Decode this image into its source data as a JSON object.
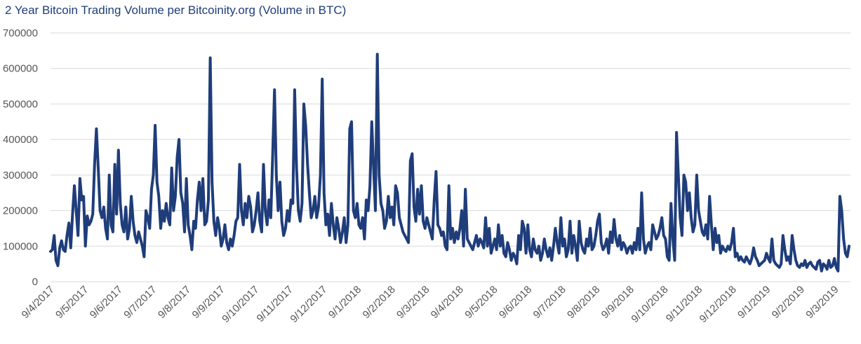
{
  "chart_data": {
    "type": "line",
    "title": "2 Year Bitcoin Trading Volume per Bitcoinity.org (Volume in BTC)",
    "xlabel": "",
    "ylabel": "",
    "ylim": [
      0,
      700000
    ],
    "yticks": [
      0,
      100000,
      200000,
      300000,
      400000,
      500000,
      600000,
      700000
    ],
    "ytick_labels": [
      "0",
      "100000",
      "200000",
      "300000",
      "400000",
      "500000",
      "600000",
      "700000"
    ],
    "xtick_labels": [
      "9/4/2017",
      "9/5/2017",
      "9/6/2017",
      "9/7/2017",
      "9/8/2017",
      "9/9/2017",
      "9/10/2017",
      "9/11/2017",
      "9/12/2017",
      "9/1/2018",
      "9/2/2018",
      "9/3/2018",
      "9/4/2018",
      "9/5/2018",
      "9/6/2018",
      "9/7/2018",
      "9/8/2018",
      "9/9/2018",
      "9/10/2018",
      "9/11/2018",
      "9/12/2018",
      "9/1/2019",
      "9/2/2019",
      "9/3/2019"
    ],
    "grid": true,
    "legend": "none",
    "line_color": "#1f3d7a",
    "series": [
      {
        "values": [
          85000,
          90000,
          130000,
          60000,
          45000,
          95000,
          115000,
          90000,
          85000,
          130000,
          165000,
          95000,
          190000,
          270000,
          200000,
          130000,
          290000,
          230000,
          240000,
          100000,
          185000,
          160000,
          170000,
          190000,
          330000,
          430000,
          320000,
          200000,
          180000,
          210000,
          150000,
          120000,
          300000,
          160000,
          140000,
          330000,
          190000,
          370000,
          220000,
          160000,
          140000,
          210000,
          120000,
          150000,
          240000,
          170000,
          130000,
          110000,
          140000,
          120000,
          100000,
          70000,
          200000,
          180000,
          150000,
          260000,
          300000,
          440000,
          280000,
          240000,
          150000,
          200000,
          170000,
          220000,
          180000,
          160000,
          320000,
          200000,
          240000,
          350000,
          400000,
          250000,
          220000,
          140000,
          290000,
          160000,
          130000,
          90000,
          170000,
          150000,
          230000,
          280000,
          200000,
          290000,
          160000,
          170000,
          230000,
          630000,
          280000,
          170000,
          130000,
          180000,
          150000,
          100000,
          120000,
          160000,
          110000,
          90000,
          120000,
          100000,
          130000,
          170000,
          180000,
          330000,
          200000,
          160000,
          220000,
          180000,
          240000,
          210000,
          140000,
          160000,
          200000,
          250000,
          170000,
          140000,
          330000,
          200000,
          160000,
          230000,
          180000,
          350000,
          540000,
          300000,
          200000,
          280000,
          170000,
          130000,
          150000,
          200000,
          170000,
          230000,
          220000,
          540000,
          320000,
          200000,
          170000,
          220000,
          500000,
          440000,
          330000,
          250000,
          180000,
          200000,
          240000,
          180000,
          210000,
          300000,
          570000,
          250000,
          160000,
          190000,
          130000,
          220000,
          160000,
          120000,
          180000,
          150000,
          110000,
          140000,
          180000,
          110000,
          160000,
          430000,
          450000,
          200000,
          180000,
          220000,
          160000,
          150000,
          180000,
          120000,
          230000,
          200000,
          270000,
          450000,
          320000,
          200000,
          640000,
          300000,
          220000,
          200000,
          150000,
          170000,
          240000,
          180000,
          210000,
          160000,
          270000,
          250000,
          180000,
          160000,
          140000,
          130000,
          120000,
          110000,
          340000,
          360000,
          210000,
          170000,
          260000,
          190000,
          270000,
          170000,
          150000,
          180000,
          160000,
          140000,
          120000,
          230000,
          310000,
          160000,
          150000,
          130000,
          140000,
          100000,
          90000,
          270000,
          120000,
          150000,
          110000,
          140000,
          120000,
          150000,
          200000,
          100000,
          260000,
          120000,
          110000,
          100000,
          90000,
          110000,
          130000,
          100000,
          120000,
          110000,
          95000,
          180000,
          100000,
          150000,
          80000,
          100000,
          120000,
          90000,
          160000,
          100000,
          130000,
          80000,
          70000,
          110000,
          90000,
          60000,
          80000,
          70000,
          50000,
          130000,
          90000,
          170000,
          150000,
          80000,
          160000,
          90000,
          70000,
          120000,
          90000,
          80000,
          100000,
          60000,
          80000,
          120000,
          90000,
          70000,
          95000,
          60000,
          100000,
          150000,
          110000,
          80000,
          180000,
          100000,
          120000,
          70000,
          90000,
          170000,
          80000,
          130000,
          100000,
          60000,
          170000,
          110000,
          90000,
          80000,
          120000,
          100000,
          150000,
          90000,
          100000,
          130000,
          170000,
          190000,
          110000,
          90000,
          100000,
          120000,
          80000,
          140000,
          110000,
          175000,
          120000,
          100000,
          130000,
          90000,
          110000,
          100000,
          80000,
          95000,
          100000,
          80000,
          110000,
          90000,
          150000,
          90000,
          250000,
          120000,
          80000,
          100000,
          110000,
          90000,
          160000,
          140000,
          120000,
          130000,
          150000,
          180000,
          130000,
          120000,
          70000,
          60000,
          220000,
          120000,
          60000,
          420000,
          300000,
          180000,
          130000,
          300000,
          280000,
          200000,
          250000,
          180000,
          140000,
          160000,
          300000,
          200000,
          170000,
          140000,
          130000,
          160000,
          120000,
          240000,
          160000,
          90000,
          150000,
          110000,
          130000,
          80000,
          100000,
          90000,
          85000,
          100000,
          90000,
          110000,
          150000,
          70000,
          80000,
          60000,
          70000,
          60000,
          55000,
          70000,
          60000,
          50000,
          65000,
          95000,
          70000,
          60000,
          45000,
          50000,
          55000,
          60000,
          80000,
          65000,
          55000,
          120000,
          60000,
          50000,
          45000,
          40000,
          50000,
          130000,
          90000,
          60000,
          70000,
          50000,
          130000,
          90000,
          60000,
          45000,
          40000,
          50000,
          45000,
          60000,
          40000,
          50000,
          55000,
          45000,
          40000,
          35000,
          55000,
          60000,
          30000,
          50000,
          45000,
          35000,
          60000,
          40000,
          45000,
          65000,
          40000,
          30000,
          240000,
          200000,
          120000,
          80000,
          70000,
          100000
        ]
      }
    ]
  }
}
